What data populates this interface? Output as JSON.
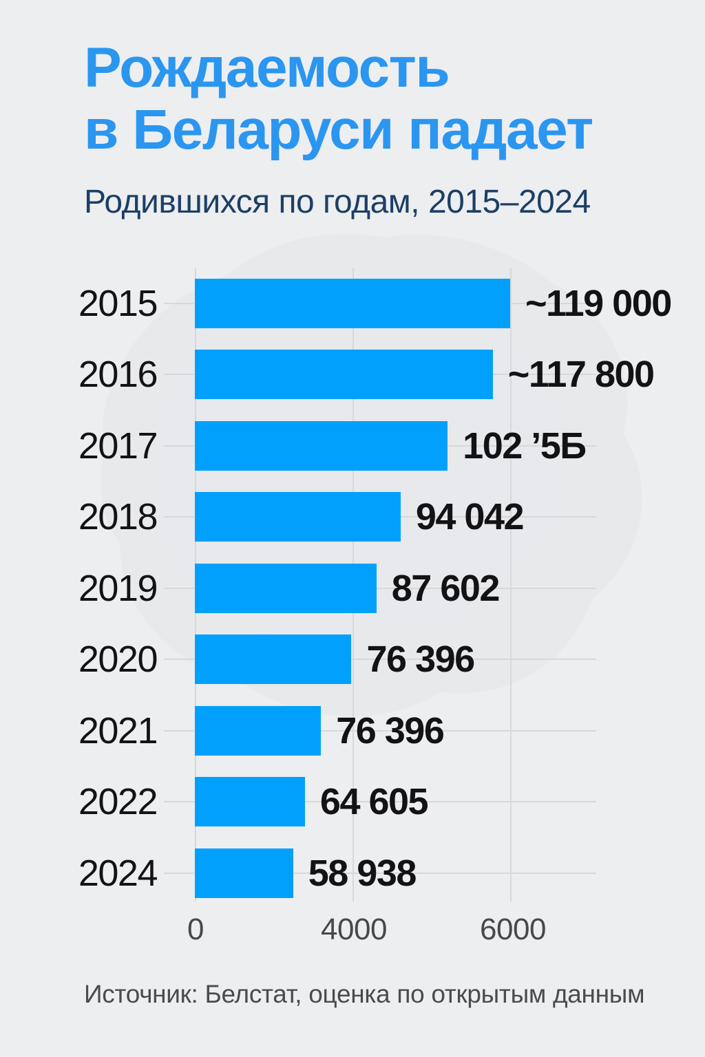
{
  "header": {
    "title_line1": "Рождаемость",
    "title_line2": "в Беларуси падает",
    "subtitle": "Родившихся по годам, 2015–2024"
  },
  "source": {
    "text": "Источник: Белстат, оценка по открытым данным"
  },
  "colors": {
    "background": "#edeef0",
    "bar": "#01a0fd",
    "title": "#2b96f0",
    "subtitle": "#1c3f66",
    "grid": "#d7d8da",
    "axis_text": "#48484b",
    "value_text": "#131316",
    "source_text": "#4b4b4e",
    "watermark": "#e3e5e8"
  },
  "chart_data": {
    "type": "bar",
    "orientation": "horizontal",
    "title": "Рождаемость в Беларуси падает",
    "subtitle": "Родившихся по годам, 2015–2024",
    "categories": [
      "2015",
      "2016",
      "2017",
      "2018",
      "2019",
      "2020",
      "2021",
      "2022",
      "2024"
    ],
    "value_labels": [
      "~119 000",
      "~117 800",
      "102 ’5Б",
      "94 042",
      "87 602",
      "76 396",
      "76 396",
      "64 605",
      "58 938"
    ],
    "bar_lengths_axis_units": [
      6000,
      5670,
      4810,
      3915,
      3455,
      2980,
      2400,
      2095,
      1870
    ],
    "x_ticks": [
      "0",
      "4000",
      "6000"
    ],
    "xlim": [
      0,
      6000
    ],
    "grid": true,
    "legend": "none",
    "notes": "no 2023 row shown; tilde prefix on 2015 and 2016 values; 2017 value label garbled as shown"
  }
}
